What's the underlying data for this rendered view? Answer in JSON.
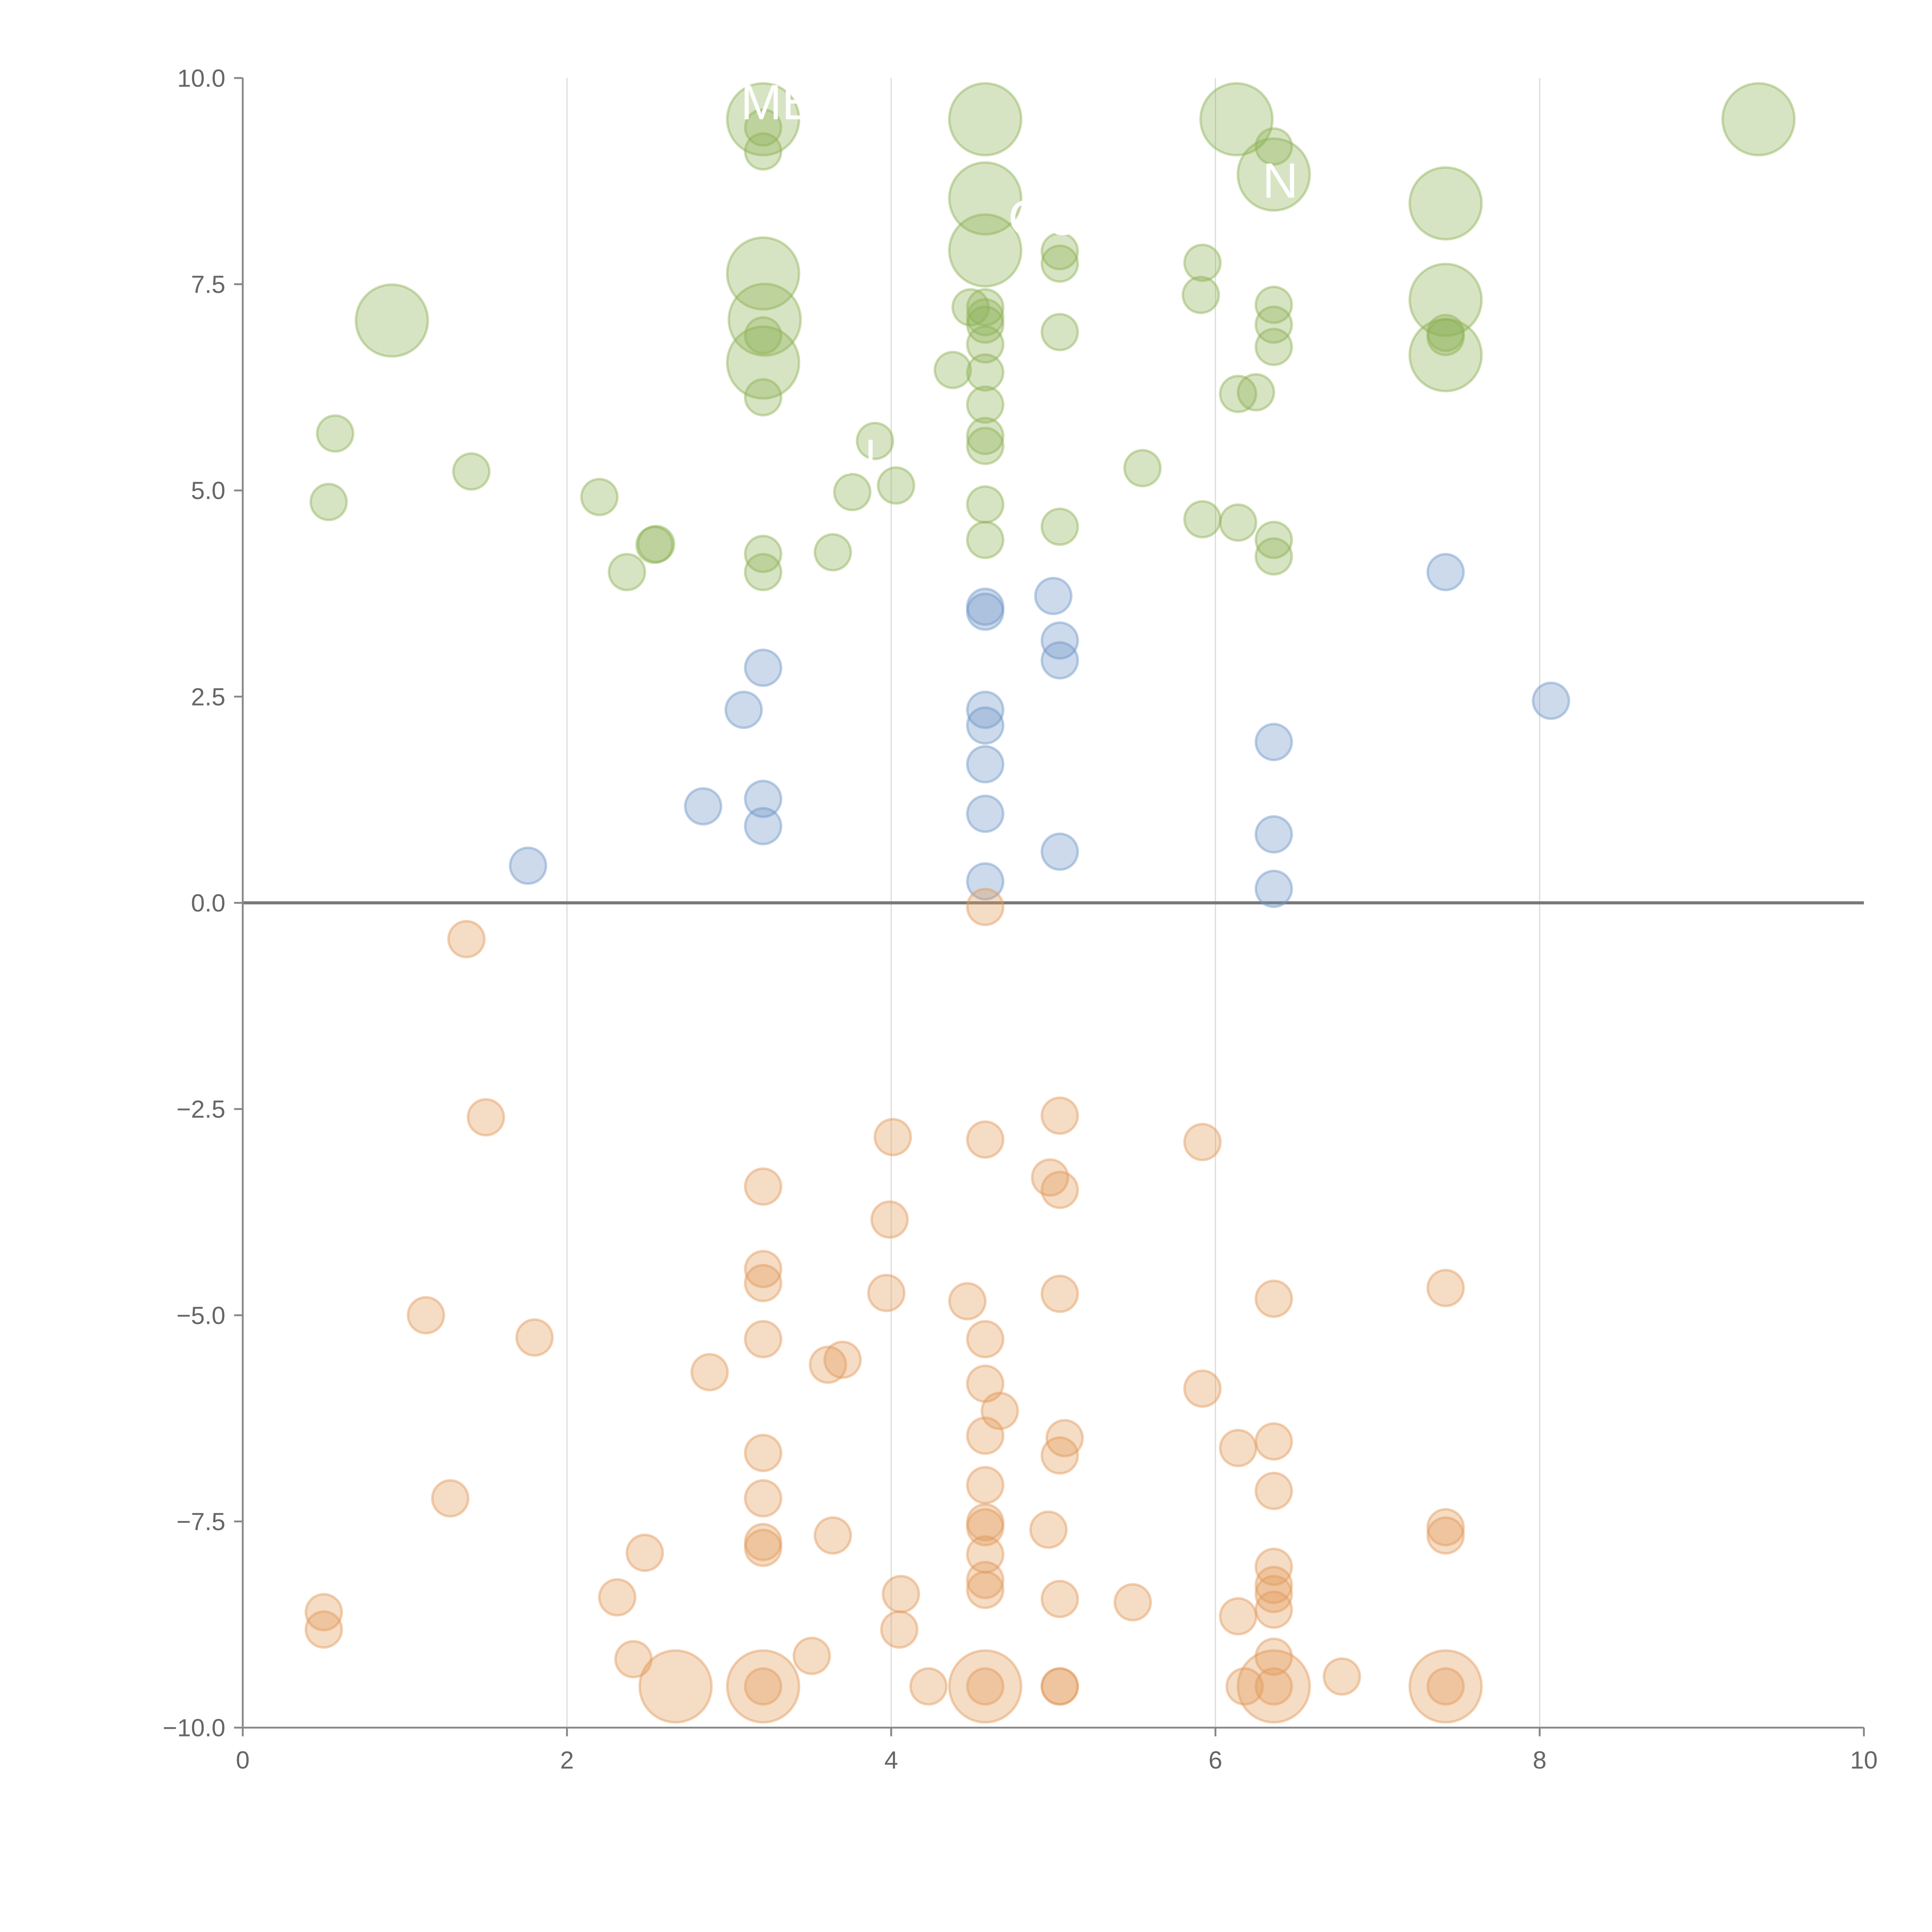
{
  "chart_data": {
    "type": "scatter",
    "title": "",
    "xlabel": "",
    "ylabel": "",
    "xlim": [
      0,
      10
    ],
    "ylim": [
      -10,
      10
    ],
    "xticks": [
      "0",
      "2",
      "4",
      "6",
      "8",
      "10"
    ],
    "yticks": [
      "10.0",
      "7.5",
      "5.0",
      "2.5",
      "0.0",
      "−2.5",
      "−5.0",
      "−7.5",
      "−10.0"
    ],
    "grid": "vertical",
    "series": [
      {
        "name": "green",
        "color": "#8db255",
        "points": [
          [
            3.21,
            9.5,
            3
          ],
          [
            4.58,
            9.5,
            3
          ],
          [
            6.13,
            9.5,
            3
          ],
          [
            9.35,
            9.5,
            3
          ],
          [
            6.36,
            8.83,
            3
          ],
          [
            4.58,
            8.54,
            3
          ],
          [
            7.42,
            8.48,
            3
          ],
          [
            4.58,
            7.91,
            3
          ],
          [
            3.21,
            7.63,
            3
          ],
          [
            0.92,
            7.06,
            3
          ],
          [
            3.22,
            7.07,
            3
          ],
          [
            7.42,
            7.31,
            3
          ],
          [
            3.21,
            6.55,
            3
          ],
          [
            7.42,
            6.64,
            3
          ],
          [
            3.21,
            9.4,
            1
          ],
          [
            3.21,
            9.11,
            1
          ],
          [
            6.36,
            9.17,
            1
          ],
          [
            5.04,
            7.9,
            1
          ],
          [
            5.04,
            7.75,
            1
          ],
          [
            5.92,
            7.76,
            1
          ],
          [
            5.91,
            7.37,
            1
          ],
          [
            6.36,
            7.25,
            1
          ],
          [
            6.36,
            7.01,
            1
          ],
          [
            6.36,
            6.74,
            1
          ],
          [
            4.58,
            7.22,
            1
          ],
          [
            4.58,
            7.1,
            1
          ],
          [
            4.58,
            7.01,
            1
          ],
          [
            4.58,
            6.77,
            1
          ],
          [
            4.58,
            6.43,
            1
          ],
          [
            4.58,
            6.04,
            1
          ],
          [
            4.58,
            5.66,
            1
          ],
          [
            4.58,
            5.54,
            1
          ],
          [
            4.49,
            7.22,
            1
          ],
          [
            4.38,
            6.46,
            1
          ],
          [
            5.04,
            6.92,
            1
          ],
          [
            3.21,
            6.88,
            1
          ],
          [
            3.21,
            6.13,
            1
          ],
          [
            6.14,
            6.17,
            1
          ],
          [
            6.25,
            6.19,
            1
          ],
          [
            7.42,
            6.91,
            1
          ],
          [
            7.42,
            6.86,
            1
          ],
          [
            0.57,
            5.69,
            1
          ],
          [
            0.53,
            4.86,
            1
          ],
          [
            1.41,
            5.23,
            1
          ],
          [
            2.2,
            4.92,
            1
          ],
          [
            2.37,
            4.01,
            1
          ],
          [
            2.54,
            4.34,
            1
          ],
          [
            2.55,
            4.35,
            1
          ],
          [
            3.21,
            4.23,
            1
          ],
          [
            3.21,
            4.01,
            1
          ],
          [
            3.64,
            4.25,
            1
          ],
          [
            3.9,
            5.6,
            1
          ],
          [
            3.76,
            4.98,
            1
          ],
          [
            4.03,
            5.06,
            1
          ],
          [
            4.58,
            4.83,
            1
          ],
          [
            4.58,
            4.4,
            1
          ],
          [
            5.04,
            4.56,
            1
          ],
          [
            5.55,
            5.27,
            1
          ],
          [
            5.92,
            4.65,
            1
          ],
          [
            6.14,
            4.61,
            1
          ],
          [
            6.36,
            4.4,
            1
          ],
          [
            6.36,
            4.2,
            1
          ]
        ]
      },
      {
        "name": "blue",
        "color": "#6f96c8",
        "points": [
          [
            1.76,
            0.45,
            1
          ],
          [
            2.84,
            1.17,
            1
          ],
          [
            3.09,
            2.34,
            1
          ],
          [
            3.21,
            2.85,
            1
          ],
          [
            3.21,
            1.26,
            1
          ],
          [
            3.21,
            0.93,
            1
          ],
          [
            4.58,
            3.59,
            1
          ],
          [
            4.58,
            3.53,
            1
          ],
          [
            4.58,
            2.34,
            1
          ],
          [
            4.58,
            2.15,
            1
          ],
          [
            4.58,
            1.68,
            1
          ],
          [
            4.58,
            1.08,
            1
          ],
          [
            4.58,
            0.26,
            1
          ],
          [
            5.0,
            3.72,
            1
          ],
          [
            5.04,
            3.18,
            1
          ],
          [
            5.04,
            2.94,
            1
          ],
          [
            5.04,
            0.62,
            1
          ],
          [
            6.36,
            1.95,
            1
          ],
          [
            6.36,
            0.83,
            1
          ],
          [
            6.36,
            0.17,
            1
          ],
          [
            7.42,
            4.01,
            1
          ],
          [
            8.07,
            2.45,
            1
          ]
        ]
      },
      {
        "name": "orange",
        "color": "#e39a5a",
        "points": [
          [
            2.67,
            -9.5,
            3
          ],
          [
            3.21,
            -9.5,
            3
          ],
          [
            4.58,
            -9.5,
            3
          ],
          [
            6.36,
            -9.5,
            3
          ],
          [
            7.42,
            -9.5,
            3
          ],
          [
            1.38,
            -0.44,
            1
          ],
          [
            4.58,
            -0.05,
            1
          ],
          [
            1.5,
            -2.6,
            1
          ],
          [
            4.01,
            -2.84,
            1
          ],
          [
            4.58,
            -2.87,
            1
          ],
          [
            5.04,
            -2.58,
            1
          ],
          [
            5.92,
            -2.9,
            1
          ],
          [
            3.21,
            -3.44,
            1
          ],
          [
            4.98,
            -3.33,
            1
          ],
          [
            5.04,
            -3.48,
            1
          ],
          [
            3.99,
            -3.84,
            1
          ],
          [
            3.21,
            -4.44,
            1
          ],
          [
            3.21,
            -4.61,
            1
          ],
          [
            3.97,
            -4.73,
            1
          ],
          [
            4.47,
            -4.83,
            1
          ],
          [
            5.04,
            -4.74,
            1
          ],
          [
            6.36,
            -4.8,
            1
          ],
          [
            7.42,
            -4.67,
            1
          ],
          [
            1.13,
            -5.0,
            1
          ],
          [
            1.8,
            -5.27,
            1
          ],
          [
            3.21,
            -5.29,
            1
          ],
          [
            4.58,
            -5.29,
            1
          ],
          [
            2.88,
            -5.69,
            1
          ],
          [
            3.61,
            -5.6,
            1
          ],
          [
            3.7,
            -5.54,
            1
          ],
          [
            4.58,
            -5.83,
            1
          ],
          [
            5.92,
            -5.89,
            1
          ],
          [
            4.67,
            -6.16,
            1
          ],
          [
            5.07,
            -6.49,
            1
          ],
          [
            5.04,
            -6.7,
            1
          ],
          [
            4.58,
            -6.46,
            1
          ],
          [
            6.14,
            -6.61,
            1
          ],
          [
            6.36,
            -6.53,
            1
          ],
          [
            3.21,
            -6.67,
            1
          ],
          [
            4.58,
            -7.06,
            1
          ],
          [
            6.36,
            -7.13,
            1
          ],
          [
            1.28,
            -7.22,
            1
          ],
          [
            3.21,
            -7.22,
            1
          ],
          [
            4.58,
            -7.51,
            1
          ],
          [
            4.58,
            -7.57,
            1
          ],
          [
            4.97,
            -7.6,
            1
          ],
          [
            3.64,
            -7.67,
            1
          ],
          [
            3.21,
            -7.75,
            1
          ],
          [
            3.21,
            -7.82,
            1
          ],
          [
            7.42,
            -7.57,
            1
          ],
          [
            7.42,
            -7.67,
            1
          ],
          [
            2.48,
            -7.88,
            1
          ],
          [
            4.58,
            -7.9,
            1
          ],
          [
            6.36,
            -8.05,
            1
          ],
          [
            6.36,
            -8.27,
            1
          ],
          [
            6.36,
            -8.38,
            1
          ],
          [
            6.36,
            -8.57,
            1
          ],
          [
            4.58,
            -8.21,
            1
          ],
          [
            4.58,
            -8.33,
            1
          ],
          [
            4.06,
            -8.38,
            1
          ],
          [
            4.05,
            -8.81,
            1
          ],
          [
            2.31,
            -8.42,
            1
          ],
          [
            5.04,
            -8.44,
            1
          ],
          [
            5.49,
            -8.48,
            1
          ],
          [
            0.5,
            -8.6,
            1
          ],
          [
            0.5,
            -8.81,
            1
          ],
          [
            6.14,
            -8.65,
            1
          ],
          [
            2.41,
            -9.17,
            1
          ],
          [
            3.51,
            -9.13,
            1
          ],
          [
            6.36,
            -9.14,
            1
          ],
          [
            6.78,
            -9.38,
            1
          ],
          [
            4.23,
            -9.5,
            1
          ],
          [
            5.04,
            -9.5,
            1
          ],
          [
            5.04,
            -9.5,
            1
          ],
          [
            6.18,
            -9.5,
            1
          ],
          [
            6.36,
            -9.5,
            1
          ],
          [
            3.21,
            -9.5,
            1
          ],
          [
            4.58,
            -9.5,
            1
          ],
          [
            7.42,
            -9.5,
            1
          ]
        ]
      }
    ],
    "annotations": [
      {
        "text": "ME",
        "x": 3.3,
        "y": 9.5
      },
      {
        "text": "CO",
        "x": 4.95,
        "y": 8.1
      },
      {
        "text": "N",
        "x": 6.4,
        "y": 8.55
      },
      {
        "text": "N",
        "x": 3.8,
        "y": 5.2
      }
    ]
  }
}
